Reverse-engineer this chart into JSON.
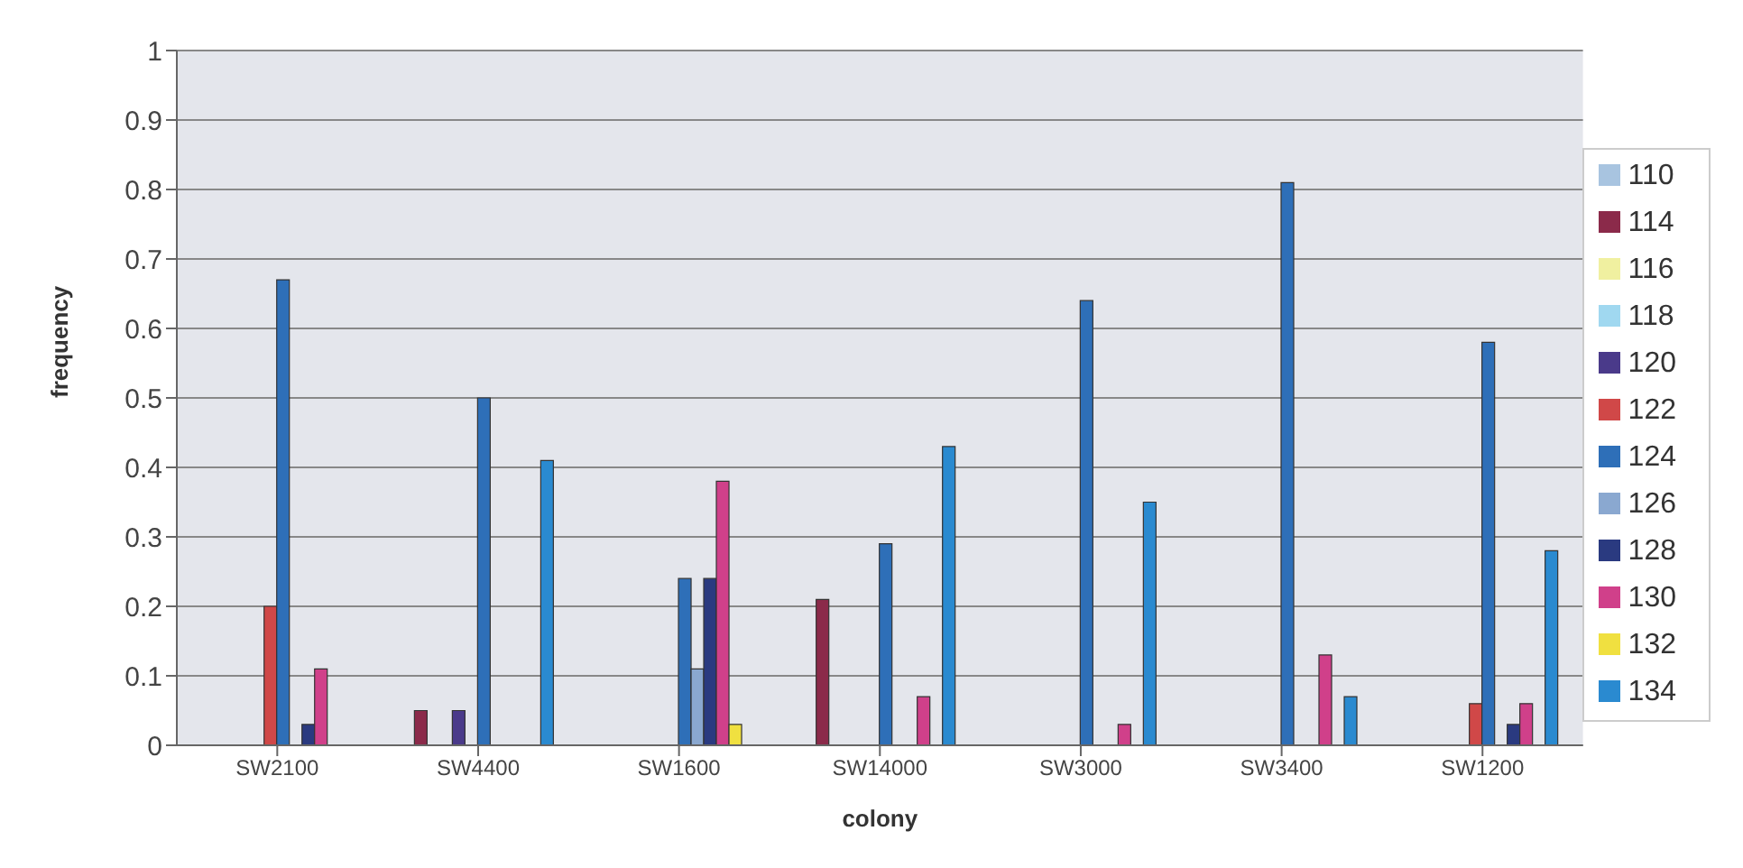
{
  "chart_data": {
    "type": "bar",
    "xlabel": "colony",
    "ylabel": "frequency",
    "categories": [
      "SW2100",
      "SW4400",
      "SW1600",
      "SW14000",
      "SW3000",
      "SW3400",
      "SW1200"
    ],
    "series": [
      {
        "name": "110",
        "color": "#a8c4e0",
        "values": [
          0,
          0,
          0,
          0,
          0,
          0,
          0
        ]
      },
      {
        "name": "114",
        "color": "#8b2a4a",
        "values": [
          0,
          0.05,
          0,
          0.21,
          0,
          0,
          0
        ]
      },
      {
        "name": "116",
        "color": "#f0f0a0",
        "values": [
          0,
          0,
          0,
          0,
          0,
          0,
          0
        ]
      },
      {
        "name": "118",
        "color": "#a0d8f0",
        "values": [
          0,
          0,
          0,
          0,
          0,
          0,
          0
        ]
      },
      {
        "name": "120",
        "color": "#4a3a8a",
        "values": [
          0,
          0.05,
          0,
          0,
          0,
          0,
          0
        ]
      },
      {
        "name": "122",
        "color": "#d04848",
        "values": [
          0.2,
          0,
          0,
          0,
          0,
          0,
          0.06
        ]
      },
      {
        "name": "124",
        "color": "#2e6fb8",
        "values": [
          0.67,
          0.5,
          0.24,
          0.29,
          0.64,
          0.81,
          0.58
        ]
      },
      {
        "name": "126",
        "color": "#8aa8d0",
        "values": [
          0,
          0,
          0.11,
          0,
          0,
          0,
          0
        ]
      },
      {
        "name": "128",
        "color": "#2a3a80",
        "values": [
          0.03,
          0,
          0.24,
          0,
          0,
          0,
          0.03
        ]
      },
      {
        "name": "130",
        "color": "#d0408a",
        "values": [
          0.11,
          0,
          0.38,
          0.07,
          0.03,
          0.13,
          0.06
        ]
      },
      {
        "name": "132",
        "color": "#f0e040",
        "values": [
          0,
          0,
          0.03,
          0,
          0,
          0,
          0
        ]
      },
      {
        "name": "134",
        "color": "#2a8ad0",
        "values": [
          0,
          0.41,
          0,
          0.43,
          0.35,
          0.07,
          0.28
        ]
      }
    ],
    "ylim": [
      0,
      1
    ],
    "yticks": [
      0,
      0.1,
      0.2,
      0.3,
      0.4,
      0.5,
      0.6,
      0.7,
      0.8,
      0.9,
      1
    ],
    "grid": "y",
    "legend": "right"
  }
}
